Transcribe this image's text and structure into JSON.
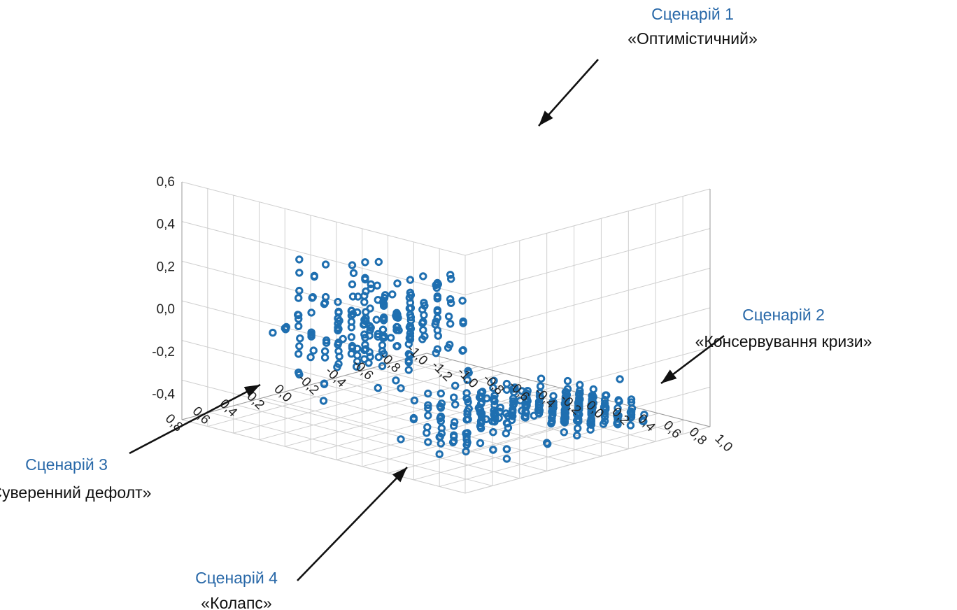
{
  "chart_data": {
    "type": "scatter",
    "subtype": "3d",
    "title": "",
    "marker": "hollow-circle",
    "color": "#1f6fb0",
    "axes": {
      "vertical": {
        "ticks": [
          "0,6",
          "0,4",
          "0,2",
          "0,0",
          "-0,2",
          "-0,4"
        ],
        "range": [
          -0.5,
          0.6
        ]
      },
      "left": {
        "ticks": [
          "0,8",
          "0,6",
          "0,4",
          "0,2",
          "0,0",
          "-0,2",
          "-0,4",
          "-0,6",
          "-0,8",
          "-1,0"
        ],
        "range": [
          -1.0,
          0.8
        ]
      },
      "right": {
        "ticks": [
          "-1,2",
          "-1,0",
          "-0,8",
          "-0,6",
          "-0,4",
          "-0,2",
          "0,0",
          "0,2",
          "0,4",
          "0,6",
          "0,8",
          "1,0"
        ],
        "range": [
          -1.2,
          1.0
        ]
      }
    },
    "grid": true,
    "annotations": [
      {
        "id": "s1",
        "title": "Сценарій 1",
        "subtitle": "«Оптимістичний»"
      },
      {
        "id": "s2",
        "title": "Сценарій 2",
        "subtitle": "«Консервування кризи»"
      },
      {
        "id": "s3",
        "title": "Сценарій 3",
        "subtitle": "«Суверенний дефолт»"
      },
      {
        "id": "s4",
        "title": "Сценарій 4",
        "subtitle": "«Колапс»"
      }
    ],
    "clusters": [
      {
        "scenario": "Сценарій 1",
        "center": [
          0.5,
          -0.3,
          0.05
        ],
        "spread": [
          0.28,
          0.28,
          0.2
        ],
        "count": 95
      },
      {
        "scenario": "Сценарій 2",
        "center": [
          0.5,
          0.7,
          -0.25
        ],
        "spread": [
          0.3,
          0.22,
          0.14
        ],
        "count": 110
      },
      {
        "scenario": "Сценарій 3",
        "center": [
          -0.5,
          -0.8,
          -0.2
        ],
        "spread": [
          0.3,
          0.25,
          0.17
        ],
        "count": 110
      },
      {
        "scenario": "Сценарій 4",
        "center": [
          -0.6,
          0.3,
          -0.45
        ],
        "spread": [
          0.26,
          0.34,
          0.05
        ],
        "count": 230
      }
    ]
  }
}
